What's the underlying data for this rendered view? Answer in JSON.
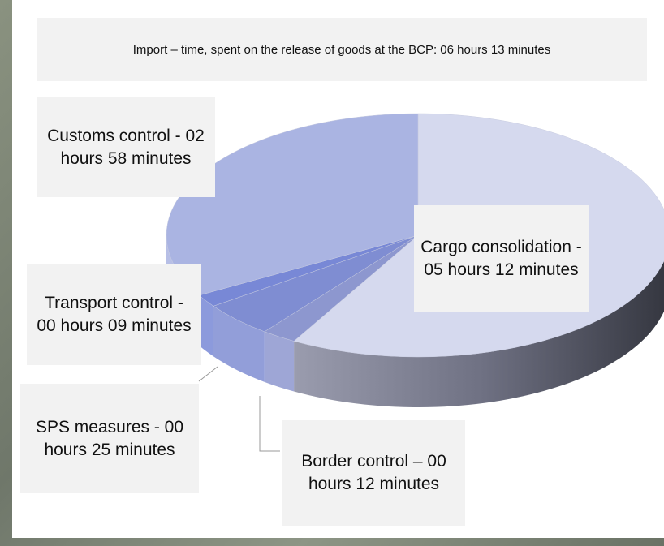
{
  "chart_data": {
    "type": "pie",
    "title": "Import – time, spent on the release of goods at the BCP: 06 hours 13 minutes",
    "categories": [
      "Cargo consolidation - 05 hours 12 minutes",
      "Border control – 00 hours 12 minutes",
      "SPS measures - 00 hours 25 minutes",
      "Transport control - 00 hours 09 minutes",
      "Customs control - 02 hours 58 minutes"
    ],
    "values": [
      312,
      12,
      25,
      9,
      178
    ],
    "colors": [
      "#d5d9ee",
      "#8d97cf",
      "#7f8dd2",
      "#7888d6",
      "#aab4e2"
    ]
  }
}
